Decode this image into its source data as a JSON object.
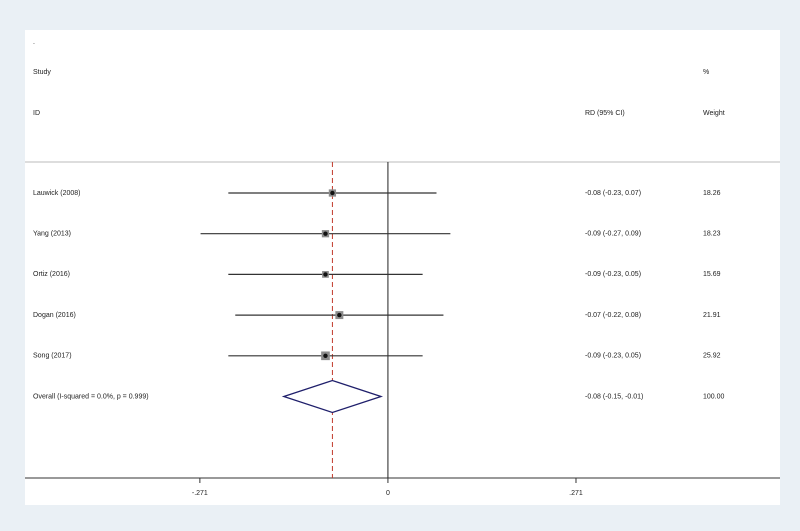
{
  "chart_data": {
    "type": "forest",
    "title": ".",
    "study_header": [
      "Study",
      "ID"
    ],
    "ci_header": "RD (95% CI)",
    "weight_header": [
      "%",
      "Weight"
    ],
    "categories": [
      "Lauwick (2008)",
      "Yang (2013)",
      "Ortiz (2016)",
      "Dogan (2016)",
      "Song (2017)"
    ],
    "values": [
      -0.08,
      -0.09,
      -0.09,
      -0.07,
      -0.09
    ],
    "ci_low": [
      -0.23,
      -0.27,
      -0.23,
      -0.22,
      -0.23
    ],
    "ci_high": [
      0.07,
      0.09,
      0.05,
      0.08,
      0.05
    ],
    "value_labels": [
      "-0.08 (-0.23, 0.07)",
      "-0.09 (-0.27, 0.09)",
      "-0.09 (-0.23, 0.05)",
      "-0.07 (-0.22, 0.08)",
      "-0.09 (-0.23, 0.05)"
    ],
    "weights": [
      18.26,
      18.23,
      15.69,
      21.91,
      25.92
    ],
    "overall": {
      "label": "Overall  (I-squared = 0.0%, p = 0.999)",
      "value": -0.08,
      "ci_low": -0.15,
      "ci_high": -0.01,
      "value_label": "-0.08 (-0.15, -0.01)",
      "weight": 100,
      "weight_label": "100.00"
    },
    "xlim": [
      -0.523,
      0.565
    ],
    "xticks": [
      {
        "value": -0.271,
        "label": "-.271"
      },
      0,
      {
        "value": 0.271,
        "label": ".271"
      }
    ],
    "box_color": "#8c8c8c",
    "diamond_color": "#1f1f6b",
    "overall_line_color": "#c0392b"
  }
}
